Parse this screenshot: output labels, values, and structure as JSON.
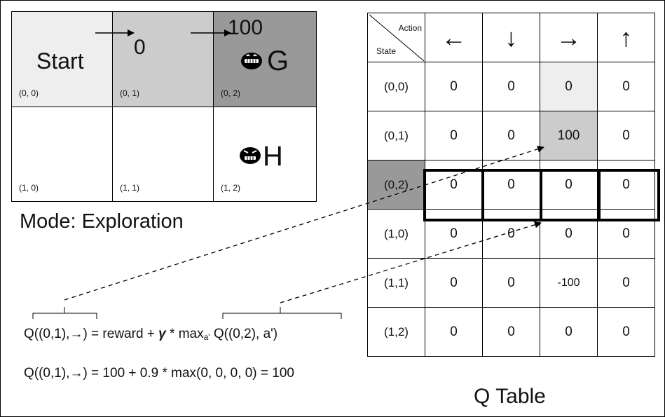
{
  "grid_world": {
    "start_label": "Start",
    "cells": [
      {
        "coord": "(0, 0)"
      },
      {
        "coord": "(0, 1)"
      },
      {
        "coord": "(0, 2)"
      },
      {
        "coord": "(1, 0)"
      },
      {
        "coord": "(1, 1)"
      },
      {
        "coord": "(1, 2)"
      }
    ],
    "reward_0_1": "0",
    "reward_0_2": "100",
    "goal_label": "G",
    "hole_label": "H",
    "colors": {
      "start": "#eeeeee",
      "cell_0_1": "#cccccc",
      "cell_0_2": "#999999"
    }
  },
  "mode_text": "Mode: Exploration",
  "q_table": {
    "title": "Q Table",
    "corner_action": "Action",
    "corner_state": "State",
    "actions": [
      "←",
      "↓",
      "→",
      "↑"
    ],
    "rows": [
      {
        "state": "(0,0)",
        "values": [
          "0",
          "0",
          "0",
          "0"
        ]
      },
      {
        "state": "(0,1)",
        "values": [
          "0",
          "0",
          "100",
          "0"
        ]
      },
      {
        "state": "(0,2)",
        "values": [
          "0",
          "0",
          "0",
          "0"
        ]
      },
      {
        "state": "(1,0)",
        "values": [
          "0",
          "0",
          "0",
          "0"
        ]
      },
      {
        "state": "(1,1)",
        "values": [
          "0",
          "0",
          "-100",
          "0"
        ]
      },
      {
        "state": "(1,2)",
        "values": [
          "0",
          "0",
          "0",
          "0"
        ]
      }
    ]
  },
  "equations": {
    "eq1_part1": "Q((0,1),→) = reward + ",
    "eq1_gamma": "γ",
    "eq1_part2": " * max",
    "eq1_sub": "a'",
    "eq1_part3": " Q((0,2), a')",
    "eq2": "Q((0,1),→) = 100 + 0.9 * max(0, 0, 0, 0) = 100"
  }
}
